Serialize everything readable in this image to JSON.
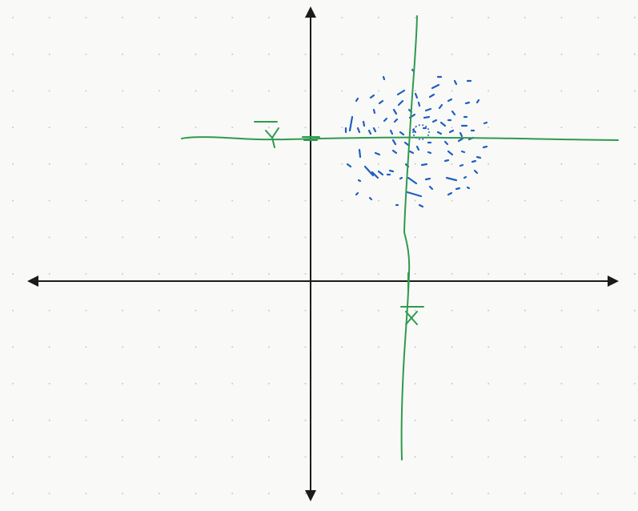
{
  "canvas": {
    "background": "#f9f9f7",
    "grid": "dot-grid",
    "grid_color": "#c9c9c6"
  },
  "axes": {
    "color": "#1b1b1b",
    "arrowheads": [
      "left-arrow-icon",
      "right-arrow-icon",
      "up-arrow-icon",
      "down-arrow-icon"
    ]
  },
  "annotations": {
    "color": "#2f9a4e",
    "mean_x_label": "X̄",
    "mean_y_label": "Ȳ"
  },
  "scatter": {
    "color": "#1f5fbf",
    "style": "hand-drawn dashes"
  }
}
